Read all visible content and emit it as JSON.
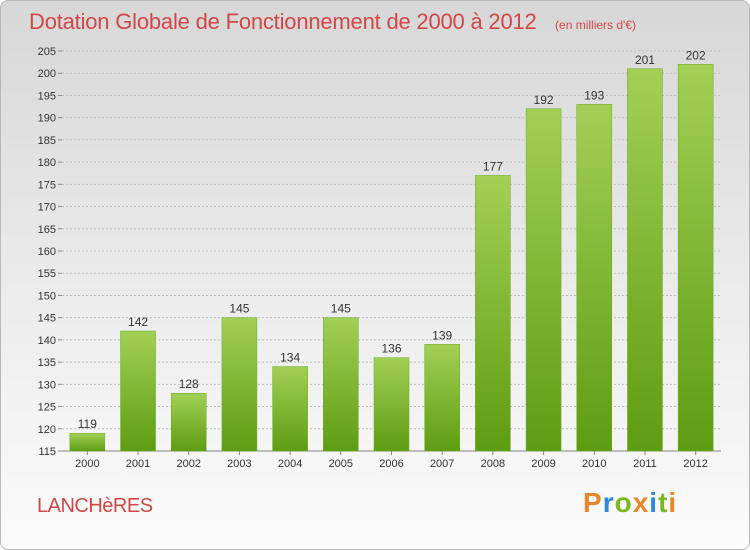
{
  "title": "Dotation Globale de Fonctionnement de 2000 à 2012",
  "unit": "(en milliers d'€)",
  "commune": "LANCHèRES",
  "logo": [
    "P",
    "r",
    "o",
    "x",
    "i",
    "t",
    "i"
  ],
  "colors": {
    "title": "#d14747",
    "bar_light": "#a2d056",
    "bar_dark": "#5e9c12",
    "grid": "#bdbdbd"
  },
  "chart_data": {
    "type": "bar",
    "title": "Dotation Globale de Fonctionnement de 2000 à 2012",
    "subtitle": "(en milliers d'€)",
    "categories": [
      "2000",
      "2001",
      "2002",
      "2003",
      "2004",
      "2005",
      "2006",
      "2007",
      "2008",
      "2009",
      "2010",
      "2011",
      "2012"
    ],
    "values": [
      119,
      142,
      128,
      145,
      134,
      145,
      136,
      139,
      177,
      192,
      193,
      201,
      202
    ],
    "ylim": [
      115,
      205
    ],
    "yticks": [
      115,
      120,
      125,
      130,
      135,
      140,
      145,
      150,
      155,
      160,
      165,
      170,
      175,
      180,
      185,
      190,
      195,
      200,
      205
    ],
    "grid": true,
    "xlabel": "",
    "ylabel": ""
  }
}
